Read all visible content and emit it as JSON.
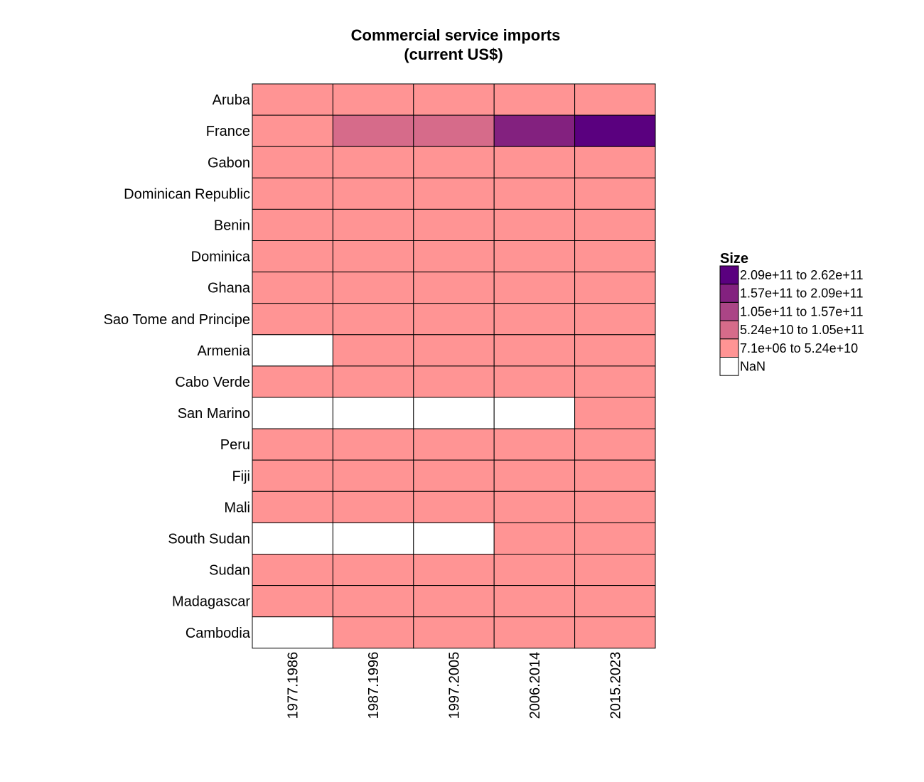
{
  "chart_data": {
    "type": "heatmap",
    "title": "Commercial service imports",
    "subtitle": "(current US$)",
    "x_categories": [
      "1977.1986",
      "1987.1996",
      "1997.2005",
      "2006.2014",
      "2015.2023"
    ],
    "y_categories": [
      "Aruba",
      "France",
      "Gabon",
      "Dominican Republic",
      "Benin",
      "Dominica",
      "Ghana",
      "Sao Tome and Principe",
      "Armenia",
      "Cabo Verde",
      "San Marino",
      "Peru",
      "Fiji",
      "Mali",
      "South Sudan",
      "Sudan",
      "Madagascar",
      "Cambodia"
    ],
    "cells_bin": [
      [
        0,
        0,
        0,
        0,
        0
      ],
      [
        0,
        1,
        1,
        3,
        4
      ],
      [
        0,
        0,
        0,
        0,
        0
      ],
      [
        0,
        0,
        0,
        0,
        0
      ],
      [
        0,
        0,
        0,
        0,
        0
      ],
      [
        0,
        0,
        0,
        0,
        0
      ],
      [
        0,
        0,
        0,
        0,
        0
      ],
      [
        0,
        0,
        0,
        0,
        0
      ],
      [
        -1,
        0,
        0,
        0,
        0
      ],
      [
        0,
        0,
        0,
        0,
        0
      ],
      [
        -1,
        -1,
        -1,
        -1,
        0
      ],
      [
        0,
        0,
        0,
        0,
        0
      ],
      [
        0,
        0,
        0,
        0,
        0
      ],
      [
        0,
        0,
        0,
        0,
        0
      ],
      [
        -1,
        -1,
        -1,
        0,
        0
      ],
      [
        0,
        0,
        0,
        0,
        0
      ],
      [
        0,
        0,
        0,
        0,
        0
      ],
      [
        -1,
        0,
        0,
        0,
        0
      ]
    ],
    "legend": {
      "title": "Size",
      "position": "right",
      "bins": [
        {
          "label": "7.1e+06 to 5.24e+10",
          "color": "#ff9494"
        },
        {
          "label": "5.24e+10 to 1.05e+11",
          "color": "#d66b8a"
        },
        {
          "label": "1.05e+11 to 1.57e+11",
          "color": "#ab4586"
        },
        {
          "label": "1.57e+11 to 2.09e+11",
          "color": "#83217f"
        },
        {
          "label": "2.09e+11 to 2.62e+11",
          "color": "#5a007f"
        }
      ],
      "nan": {
        "label": "NaN",
        "color": "#ffffff"
      }
    },
    "grid": false
  }
}
